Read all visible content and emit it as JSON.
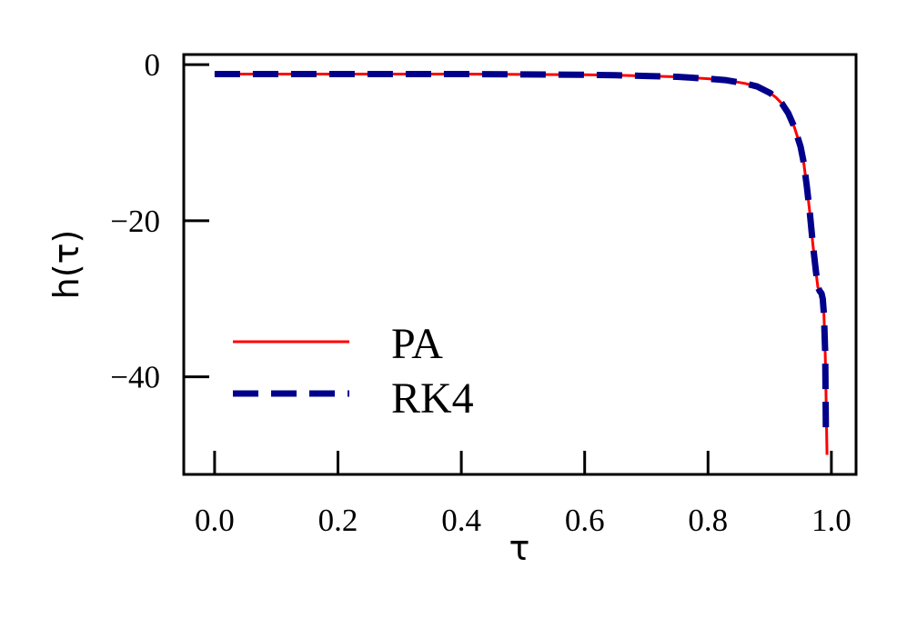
{
  "chart_data": {
    "type": "line",
    "xlabel": "τ",
    "ylabel": "h(τ)",
    "xlim": [
      -0.05,
      1.04
    ],
    "ylim": [
      -52.5,
      1.3
    ],
    "x_ticks": [
      {
        "value": 0.0,
        "label": "0.0"
      },
      {
        "value": 0.2,
        "label": "0.2"
      },
      {
        "value": 0.4,
        "label": "0.4"
      },
      {
        "value": 0.6,
        "label": "0.6"
      },
      {
        "value": 0.8,
        "label": "0.8"
      },
      {
        "value": 1.0,
        "label": "1.0"
      }
    ],
    "y_ticks": [
      {
        "value": 0,
        "label": "0"
      },
      {
        "value": -20,
        "label": "−20"
      },
      {
        "value": -40,
        "label": "−40"
      }
    ],
    "legend_position": "lower-left",
    "series": [
      {
        "name": "PA",
        "color": "#ff0000",
        "style": "solid",
        "x": [
          0.0,
          0.1,
          0.2,
          0.3,
          0.4,
          0.5,
          0.6,
          0.65,
          0.7,
          0.75,
          0.8,
          0.83,
          0.86,
          0.88,
          0.9,
          0.91,
          0.92,
          0.93,
          0.94,
          0.95,
          0.955,
          0.96,
          0.965,
          0.97,
          0.975,
          0.978,
          0.981,
          0.984,
          0.986,
          0.988,
          0.99,
          0.991,
          0.992,
          0.993
        ],
        "y": [
          -1.2,
          -1.2,
          -1.2,
          -1.2,
          -1.2,
          -1.25,
          -1.3,
          -1.35,
          -1.45,
          -1.55,
          -1.8,
          -2.0,
          -2.4,
          -2.8,
          -3.6,
          -4.2,
          -5.0,
          -6.2,
          -8.0,
          -10.5,
          -12.5,
          -15.5,
          -19.0,
          -23.0,
          -26.5,
          -28.5,
          -29.0,
          -29.3,
          -30.0,
          -32.0,
          -37.0,
          -41.0,
          -46.0,
          -50.0
        ]
      },
      {
        "name": "RK4",
        "color": "#00008b",
        "style": "dashed",
        "x": [
          0.0,
          0.1,
          0.2,
          0.3,
          0.4,
          0.5,
          0.6,
          0.65,
          0.7,
          0.75,
          0.8,
          0.83,
          0.86,
          0.88,
          0.9,
          0.91,
          0.92,
          0.93,
          0.94,
          0.95,
          0.955,
          0.96,
          0.965,
          0.97,
          0.975,
          0.978,
          0.981,
          0.984,
          0.986,
          0.988,
          0.99,
          0.991
        ],
        "y": [
          -1.2,
          -1.2,
          -1.2,
          -1.2,
          -1.2,
          -1.25,
          -1.3,
          -1.35,
          -1.45,
          -1.55,
          -1.8,
          -2.0,
          -2.4,
          -2.8,
          -3.6,
          -4.2,
          -5.0,
          -6.2,
          -8.0,
          -10.5,
          -12.5,
          -15.5,
          -19.0,
          -23.0,
          -26.5,
          -28.5,
          -29.0,
          -29.3,
          -30.0,
          -32.0,
          -37.0,
          -46.5
        ]
      }
    ]
  }
}
